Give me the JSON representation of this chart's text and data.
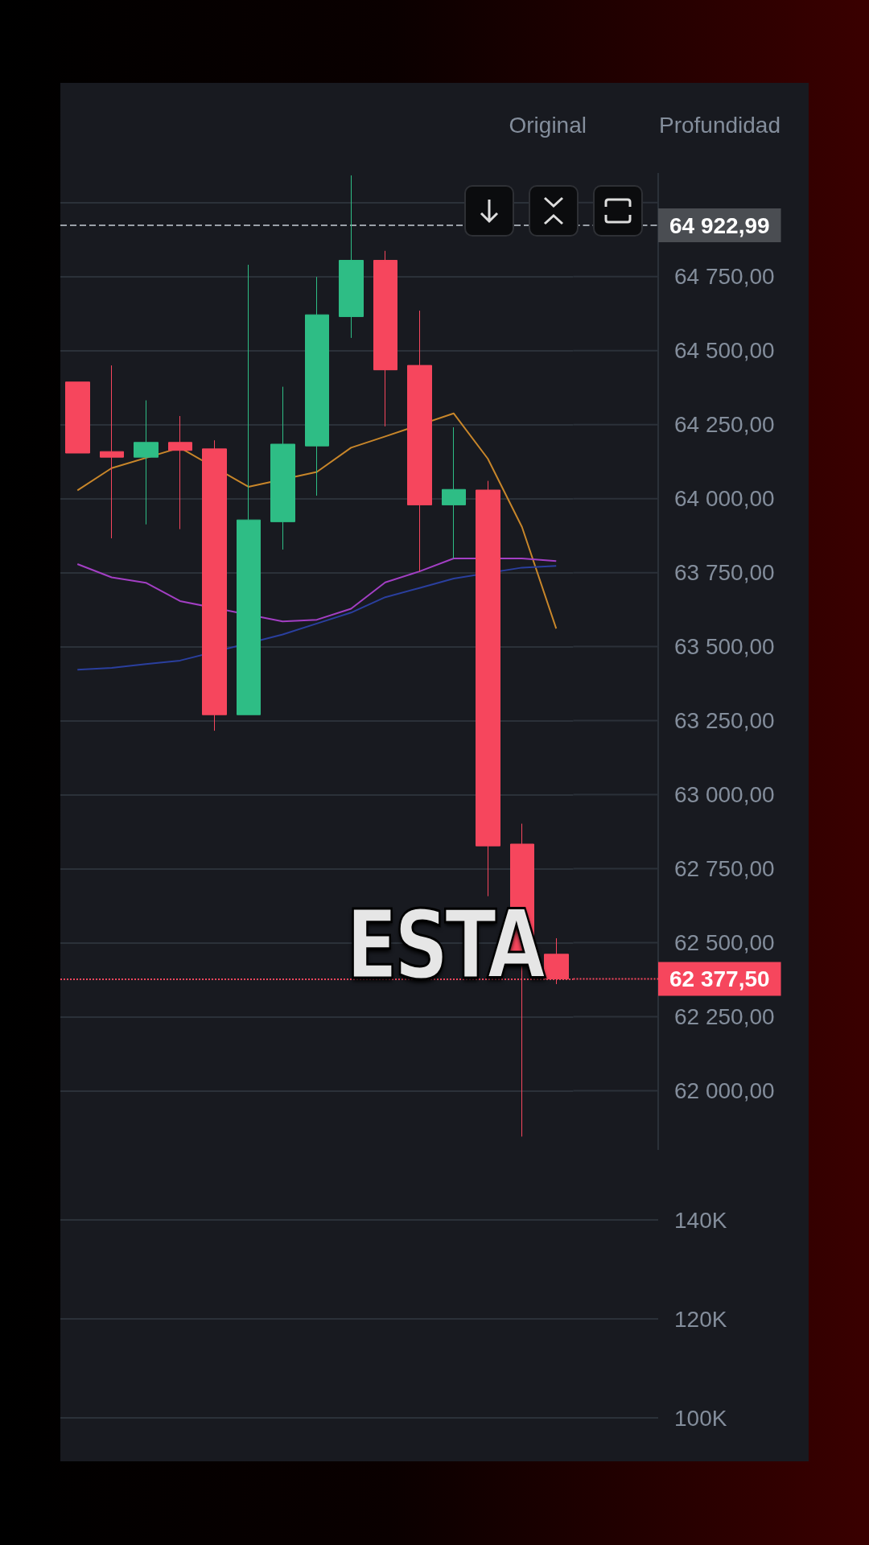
{
  "chart_data": [
    {
      "type": "candlestick",
      "categories": [
        null,
        null,
        null,
        null,
        null,
        null,
        null,
        null,
        null,
        null,
        null,
        null,
        null,
        null,
        null
      ],
      "ohlc": [
        [
          64394,
          64394,
          64154,
          64154
        ],
        [
          64159,
          64450,
          63866,
          64140
        ],
        [
          64140,
          64332,
          63913,
          64190
        ],
        [
          64190,
          64279,
          63897,
          64163
        ],
        [
          64168,
          64197,
          63216,
          63270
        ],
        [
          63270,
          64790,
          63270,
          63928
        ],
        [
          63922,
          64378,
          63828,
          64184
        ],
        [
          64178,
          64749,
          64010,
          64621
        ],
        [
          64615,
          65092,
          64543,
          64805
        ],
        [
          64805,
          64837,
          64244,
          64435
        ],
        [
          64450,
          64635,
          63754,
          63979
        ],
        [
          63979,
          64241,
          63798,
          64031
        ],
        [
          64029,
          64060,
          62657,
          62827
        ],
        [
          62833,
          62902,
          61845,
          62470
        ],
        [
          62461,
          62515,
          62360,
          62377.5
        ]
      ],
      "colors": [
        "#f6465d",
        "#f6465d",
        "#2ebd85",
        "#f6465d",
        "#f6465d",
        "#2ebd85",
        "#2ebd85",
        "#2ebd85",
        "#2ebd85",
        "#f6465d",
        "#f6465d",
        "#2ebd85",
        "#f6465d",
        "#f6465d",
        "#f6465d"
      ],
      "series": [
        {
          "type": "line",
          "color": "#c8862a",
          "values": [
            64028,
            64103,
            null,
            64172,
            null,
            64040,
            null,
            64090,
            64172,
            64210,
            null,
            64288,
            64135,
            63904,
            63561
          ]
        },
        {
          "type": "line",
          "color": "#a33fc4",
          "values": [
            63779,
            63734,
            63716,
            63654,
            null,
            null,
            63585,
            63591,
            63628,
            63717,
            63754,
            63798,
            null,
            63798,
            63789
          ]
        },
        {
          "type": "line",
          "color": "#2a3f9e",
          "values": [
            63422,
            63428,
            63441,
            63453,
            null,
            null,
            63541,
            63578,
            63615,
            63667,
            63698,
            63730,
            null,
            63767,
            63773
          ]
        }
      ],
      "ylim": [
        61800,
        65100
      ],
      "yticks": [
        {
          "value": 62000,
          "label": "62 000,00"
        },
        {
          "value": 62250,
          "label": "62 250,00"
        },
        {
          "value": 62500,
          "label": "62 500,00"
        },
        {
          "value": 62750,
          "label": "62 750,00"
        },
        {
          "value": 63000,
          "label": "63 000,00"
        },
        {
          "value": 63250,
          "label": "63 250,00"
        },
        {
          "value": 63500,
          "label": "63 500,00"
        },
        {
          "value": 63750,
          "label": "63 750,00"
        },
        {
          "value": 64000,
          "label": "64 000,00"
        },
        {
          "value": 64250,
          "label": "64 250,00"
        },
        {
          "value": 64500,
          "label": "64 500,00"
        },
        {
          "value": 64750,
          "label": "64 750,00"
        },
        {
          "value": 65000,
          "label": null
        }
      ],
      "tick_labels": "y",
      "grid": "y",
      "marker": "none",
      "ref_lines": [
        {
          "axis": "y",
          "value": 64922.99,
          "label": "64 922,99",
          "color": "#9aa0a8",
          "line_style": "dashed"
        },
        {
          "axis": "y",
          "value": 62377.5,
          "label": "62 377,50",
          "color": "#f6465d",
          "line_style": "dotted"
        }
      ],
      "annotations": [
        "Original",
        "Profundidad",
        "ESTA"
      ]
    },
    {
      "type": "other",
      "annotations": [
        "140K",
        "120K",
        "100K"
      ]
    }
  ]
}
